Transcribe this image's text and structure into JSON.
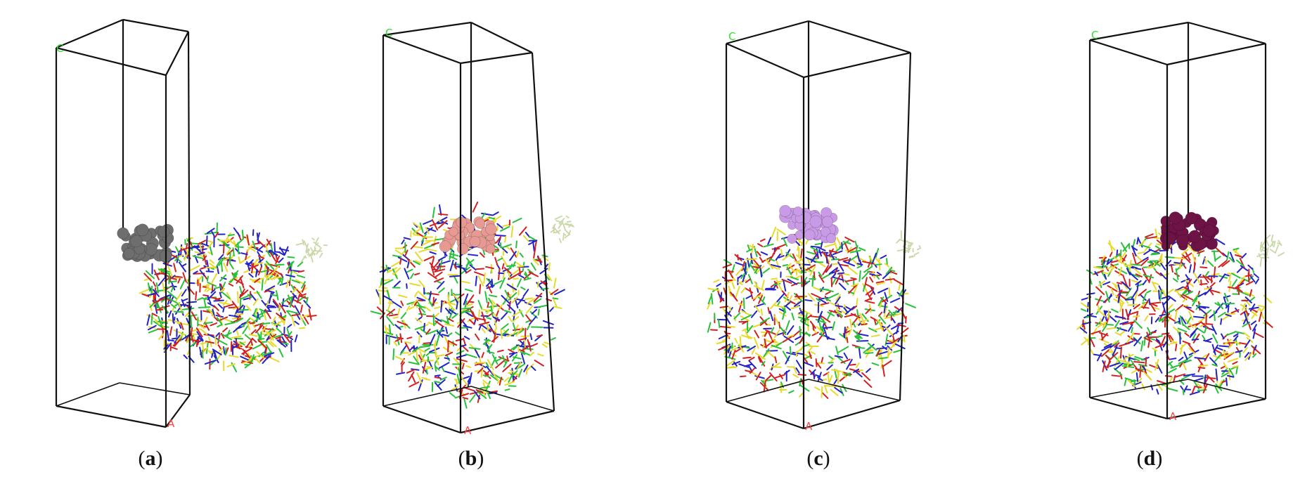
{
  "panels": [
    {
      "id": "a",
      "caption_open": "(",
      "caption_letter": "a",
      "caption_close": ")",
      "axis_top_label": "C",
      "axis_bottom_label": "A",
      "adsorbate_color": "#6e6e6e",
      "adsorbate_name": "grey-molecule"
    },
    {
      "id": "b",
      "caption_open": "(",
      "caption_letter": "b",
      "caption_close": ")",
      "axis_top_label": "C",
      "axis_bottom_label": "A",
      "adsorbate_color": "#e79a94",
      "adsorbate_name": "pink-molecule"
    },
    {
      "id": "c",
      "caption_open": "(",
      "caption_letter": "c",
      "caption_close": ")",
      "axis_top_label": "C",
      "axis_bottom_label": "A",
      "adsorbate_color": "#c99ae6",
      "adsorbate_name": "lavender-molecule"
    },
    {
      "id": "d",
      "caption_open": "(",
      "caption_letter": "d",
      "caption_close": ")",
      "axis_top_label": "C",
      "axis_bottom_label": "A",
      "adsorbate_color": "#6e1346",
      "adsorbate_name": "purple-molecule"
    }
  ],
  "colors": {
    "box_edge": "#111111",
    "axis_c": "#33dd33",
    "axis_a": "#ff4444",
    "molecule_palette": [
      "#e8da2a",
      "#27c13a",
      "#2323c8",
      "#d22020"
    ],
    "light_molecule": "#c8d8a8"
  }
}
